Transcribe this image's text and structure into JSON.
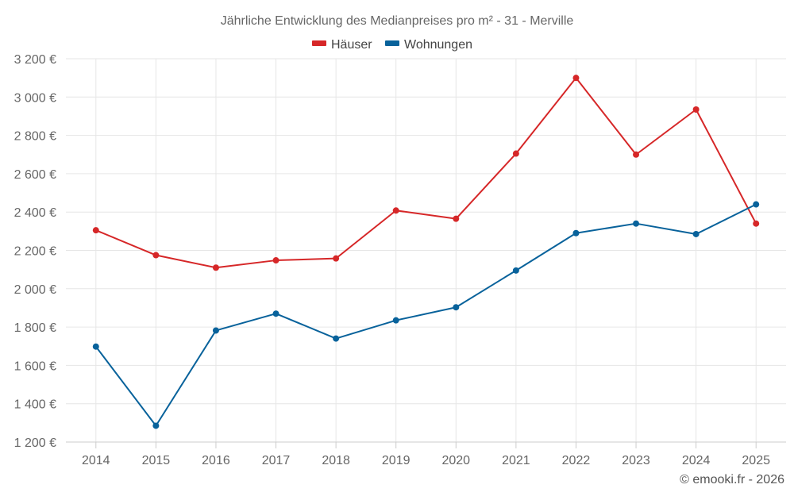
{
  "chart_data": {
    "type": "line",
    "title": "Jährliche Entwicklung des Medianpreises pro m² - 31 - Merville",
    "categories": [
      "2014",
      "2015",
      "2016",
      "2017",
      "2018",
      "2019",
      "2020",
      "2021",
      "2022",
      "2023",
      "2024",
      "2025"
    ],
    "series": [
      {
        "name": "Häuser",
        "color": "#d62728",
        "values": [
          2305,
          2175,
          2110,
          2148,
          2158,
          2408,
          2365,
          2705,
          3100,
          2700,
          2935,
          2340
        ]
      },
      {
        "name": "Wohnungen",
        "color": "#08629b",
        "values": [
          1698,
          1285,
          1782,
          1870,
          1740,
          1835,
          1903,
          2095,
          2290,
          2340,
          2285,
          2440
        ]
      }
    ],
    "ylim": [
      1200,
      3200
    ],
    "yticks": [
      1200,
      1400,
      1600,
      1800,
      2000,
      2200,
      2400,
      2600,
      2800,
      3000,
      3200
    ],
    "ytick_labels": [
      "1 200 €",
      "1 400 €",
      "1 600 €",
      "1 800 €",
      "2 000 €",
      "2 200 €",
      "2 400 €",
      "2 600 €",
      "2 800 €",
      "3 000 €",
      "3 200 €"
    ],
    "legend_position": "top-center",
    "grid": true,
    "credit": "© emooki.fr - 2026"
  }
}
